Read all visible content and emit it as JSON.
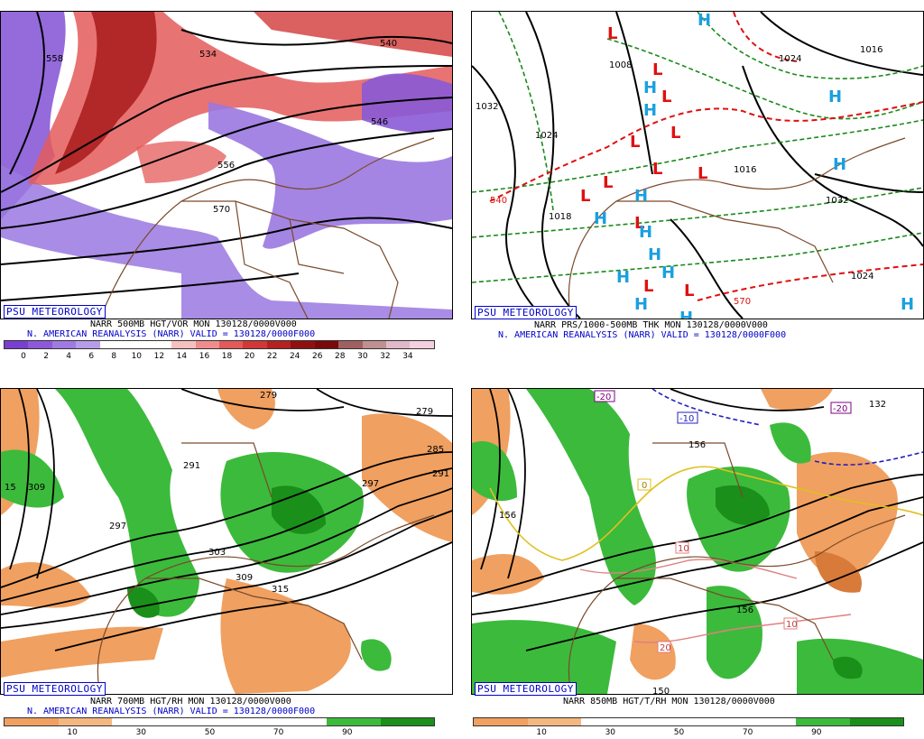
{
  "panels": [
    {
      "id": "p1",
      "badge": "PSU METEOROLOGY",
      "line1": "NARR 500MB HGT/VOR MON 130128/0000V000",
      "line2": "N. AMERICAN REANALYSIS (NARR) VALID = 130128/0000F000",
      "colorbar": [
        "#7a3fd0",
        "#8d59da",
        "#a07ae2",
        "#b69ce9",
        "#ffffff",
        "#ffffff",
        "#ffffff",
        "#f7c0c0",
        "#f08c8c",
        "#e25a5a",
        "#d23838",
        "#b52020",
        "#8f1010",
        "#7a0a0a",
        "#a06060",
        "#c09090",
        "#e0b8c8",
        "#f2d0e0"
      ],
      "ticks": [
        "0",
        "2",
        "4",
        "6",
        "8",
        "10",
        "12",
        "14",
        "16",
        "18",
        "20",
        "22",
        "24",
        "26",
        "28",
        "30",
        "32",
        "34"
      ],
      "contour_labels": [
        "558",
        "534",
        "546",
        "540",
        "546",
        "556",
        "570",
        "558"
      ]
    },
    {
      "id": "p2",
      "badge": "PSU METEOROLOGY",
      "line1": "NARR PRS/1000-500MB THK MON 130128/0000V000",
      "line2": "N. AMERICAN REANALYSIS (NARR) VALID = 130128/0000F000",
      "contour_labels": [
        "1032",
        "1024",
        "1008",
        "1016",
        "1018",
        "1032",
        "1024",
        "1008",
        "1016",
        "102",
        "1024",
        "1008"
      ],
      "thickness_labels": [
        "540",
        "570"
      ]
    },
    {
      "id": "p3",
      "badge": "PSU METEOROLOGY",
      "line1": "NARR 700MB HGT/RH MON 130128/0000V000",
      "line2": "N. AMERICAN REANALYSIS (NARR) VALID = 130128/0000F000",
      "colorbar": [
        "#f0a060",
        "#f5b780",
        "#ffffff",
        "#ffffff",
        "#ffffff",
        "#ffffff",
        "#3cba3c",
        "#1a8f1a"
      ],
      "ticks": [
        "10",
        "30",
        "50",
        "70",
        "90"
      ],
      "contour_labels": [
        "279",
        "279",
        "285",
        "291",
        "291",
        "297",
        "297",
        "303",
        "309",
        "315",
        "309",
        "15"
      ]
    },
    {
      "id": "p4",
      "badge": "PSU METEOROLOGY",
      "line1": "NARR 850MB HGT/T/RH MON 130128/0000V000",
      "colorbar": [
        "#f0a060",
        "#f5b780",
        "#ffffff",
        "#ffffff",
        "#ffffff",
        "#ffffff",
        "#3cba3c",
        "#1a8f1a"
      ],
      "ticks": [
        "10",
        "30",
        "50",
        "70",
        "90"
      ],
      "contour_labels": [
        "156",
        "156",
        "156",
        "132",
        "150"
      ],
      "temp_labels": [
        "-20",
        "-10",
        "-20",
        "10",
        "10",
        "10",
        "20",
        "0"
      ]
    }
  ]
}
